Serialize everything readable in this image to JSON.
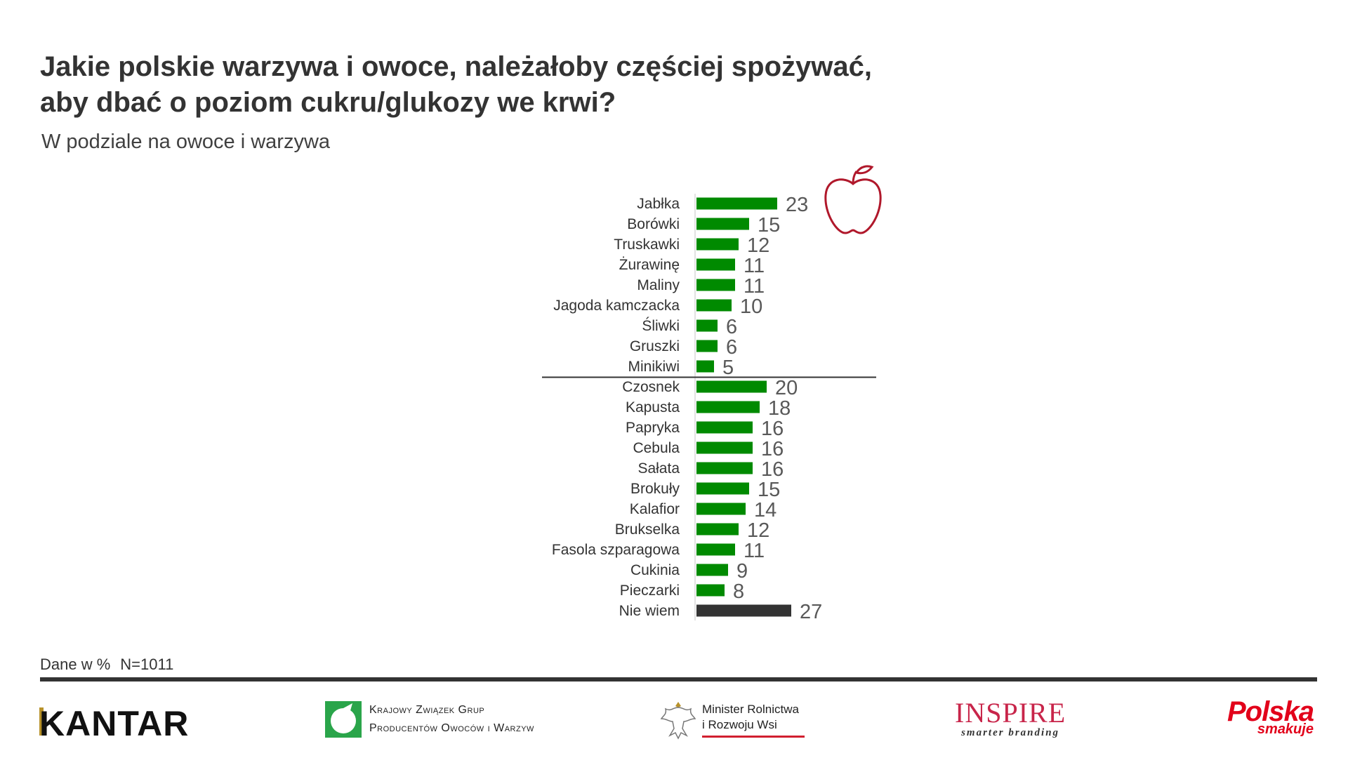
{
  "title_line1": "Jakie polskie warzywa i owoce, należałoby częściej spożywać,",
  "title_line2": "aby dbać o poziom cukru/glukozy we krwi?",
  "subtitle": "W podziale na owoce i warzywa",
  "footnote_unit": "Dane w %",
  "footnote_n": "N=1011",
  "colors": {
    "bar": "#008a00",
    "bar_dont_know": "#333333",
    "apple": "#b0182b"
  },
  "icons": [
    "apple-icon"
  ],
  "chart_data": {
    "type": "bar",
    "orientation": "horizontal",
    "categories": [
      "Jabłka",
      "Borówki",
      "Truskawki",
      "Żurawinę",
      "Maliny",
      "Jagoda kamczacka",
      "Śliwki",
      "Gruszki",
      "Minikiwi",
      "Czosnek",
      "Kapusta",
      "Papryka",
      "Cebula",
      "Sałata",
      "Brokuły",
      "Kalafior",
      "Brukselka",
      "Fasola szparagowa",
      "Cukinia",
      "Pieczarki",
      "Nie wiem"
    ],
    "values": [
      23,
      15,
      12,
      11,
      11,
      10,
      6,
      6,
      5,
      20,
      18,
      16,
      16,
      16,
      15,
      14,
      12,
      11,
      9,
      8,
      27
    ],
    "separator_after_index": 8,
    "highlight_index": 20
  },
  "logos": {
    "kantar": "KANTAR",
    "kzg_line1": "Krajowy Związek Grup",
    "kzg_line2": "Producentów Owoców i Warzyw",
    "ministry_line1": "Minister Rolnictwa",
    "ministry_line2": "i Rozwoju Wsi",
    "inspire": "INSPIRE",
    "inspire_tagline": "smarter branding",
    "polska": "Polska",
    "polska_tagline": "smakuje"
  }
}
